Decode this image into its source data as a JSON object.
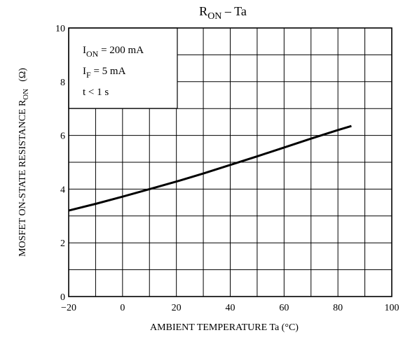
{
  "chart_data": {
    "type": "line",
    "title": {
      "main": "R",
      "sub": "ON",
      "rest": " – Ta"
    },
    "xlabel": "AMBIENT TEMPERATURE   Ta   (°C)",
    "ylabel": {
      "main": "MOSFET ON-STATE RESISTANCE  R",
      "sub": "ON",
      "unit": "(Ω)"
    },
    "xlim": [
      -20,
      100
    ],
    "ylim": [
      0,
      10
    ],
    "xticks": [
      "−20",
      "0",
      "20",
      "40",
      "60",
      "80",
      "100"
    ],
    "xtick_values": [
      -20,
      0,
      20,
      40,
      60,
      80,
      100
    ],
    "yticks": [
      "0",
      "2",
      "4",
      "6",
      "8",
      "10"
    ],
    "ytick_values": [
      0,
      2,
      4,
      6,
      8,
      10
    ],
    "x_minor_step": 10,
    "y_minor_step": 1,
    "grid": true,
    "conditions": [
      {
        "main": "I",
        "sub": "ON",
        "rest": " = 200 mA"
      },
      {
        "main": "I",
        "sub": "F",
        "rest": " = 5 mA"
      },
      {
        "main": "t < 1 s",
        "sub": "",
        "rest": ""
      }
    ],
    "series": [
      {
        "x": [
          -20,
          -10,
          0,
          10,
          20,
          30,
          40,
          50,
          60,
          70,
          80,
          85
        ],
        "y": [
          3.2,
          3.45,
          3.72,
          4.0,
          4.28,
          4.58,
          4.9,
          5.22,
          5.55,
          5.88,
          6.2,
          6.35
        ]
      }
    ]
  }
}
